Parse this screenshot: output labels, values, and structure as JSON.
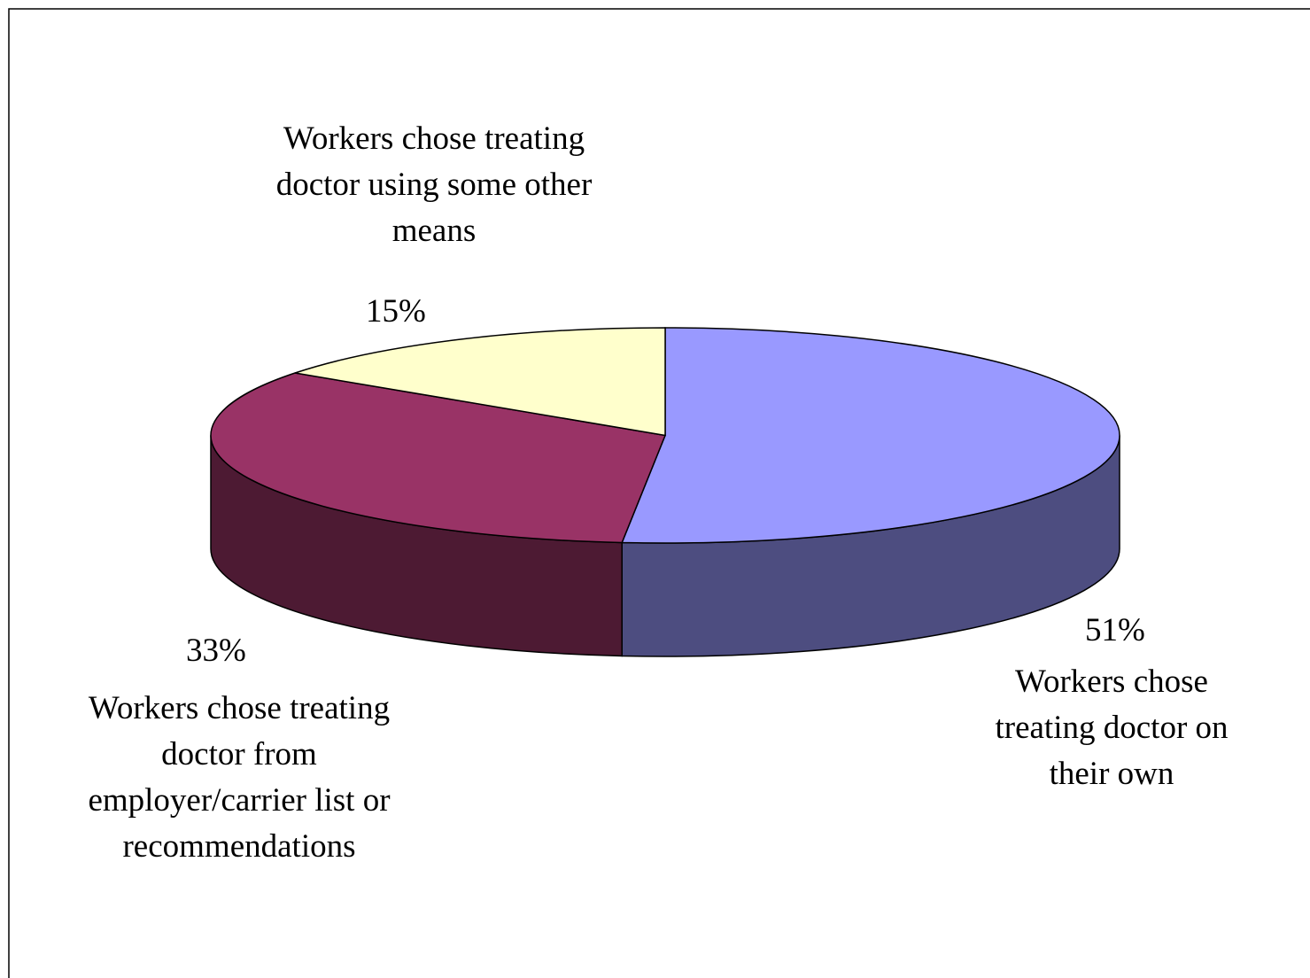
{
  "chart_data": {
    "type": "pie",
    "categories": [
      "Workers chose treating doctor on their own",
      "Workers chose treating doctor from employer/carrier list or recommendations",
      "Workers chose treating doctor using some other means"
    ],
    "values": [
      51,
      33,
      15
    ],
    "value_labels": [
      "51%",
      "33%",
      "15%"
    ],
    "colors": [
      "#9999ff",
      "#993366",
      "#ffffcc"
    ],
    "side_colors": [
      "#4d4d80",
      "#4d1a33",
      "#80806a"
    ]
  }
}
